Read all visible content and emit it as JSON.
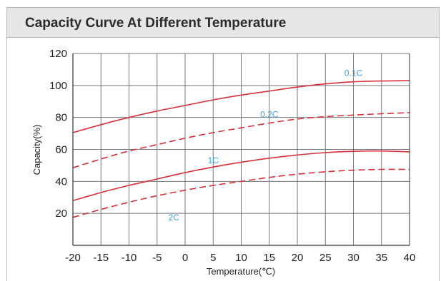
{
  "header": {
    "title": "Capacity Curve At Different Temperature"
  },
  "chart_data": {
    "type": "line",
    "title": "Capacity Curve At Different Temperature",
    "xlabel": "Temperature(℃)",
    "ylabel": "Capacity(%)",
    "xlim": [
      -20,
      40
    ],
    "ylim": [
      0,
      120
    ],
    "x_ticks": [
      "-20",
      "-15",
      "-10",
      "-5",
      "0",
      "5",
      "10",
      "15",
      "20",
      "25",
      "30",
      "35",
      "40"
    ],
    "y_ticks": [
      "20",
      "40",
      "60",
      "80",
      "100",
      "120"
    ],
    "grid": true,
    "colors": {
      "line": "#d8303a",
      "label": "#3aa4d8",
      "grid": "#777777",
      "axis": "#333333"
    },
    "series": [
      {
        "name": "0.1C",
        "style": "solid",
        "x": [
          -20,
          -15,
          -10,
          -5,
          0,
          5,
          10,
          15,
          20,
          25,
          30,
          35,
          40
        ],
        "values": [
          70.5,
          75.5,
          80,
          84,
          87.5,
          91,
          94,
          96.5,
          99,
          101,
          102.3,
          102.8,
          103
        ]
      },
      {
        "name": "0.2C",
        "style": "dashed",
        "x": [
          -20,
          -15,
          -10,
          -5,
          0,
          5,
          10,
          15,
          20,
          25,
          30,
          35,
          40
        ],
        "values": [
          48.5,
          54,
          59,
          63,
          67,
          70.5,
          73.5,
          76.5,
          79,
          80.5,
          81.5,
          82.3,
          83
        ]
      },
      {
        "name": "1C",
        "style": "solid",
        "x": [
          -20,
          -15,
          -10,
          -5,
          0,
          5,
          10,
          15,
          20,
          25,
          30,
          35,
          40
        ],
        "values": [
          28,
          33,
          37.5,
          41.5,
          45.5,
          49,
          52,
          54.5,
          56.5,
          58,
          58.8,
          59,
          58.5
        ]
      },
      {
        "name": "2C",
        "style": "dashed",
        "x": [
          -20,
          -15,
          -10,
          -5,
          0,
          5,
          10,
          15,
          20,
          25,
          30,
          35,
          40
        ],
        "values": [
          17.5,
          22.5,
          27,
          31,
          34.5,
          37.5,
          40,
          42.5,
          44.5,
          46,
          47,
          47.5,
          47.5
        ]
      }
    ]
  }
}
